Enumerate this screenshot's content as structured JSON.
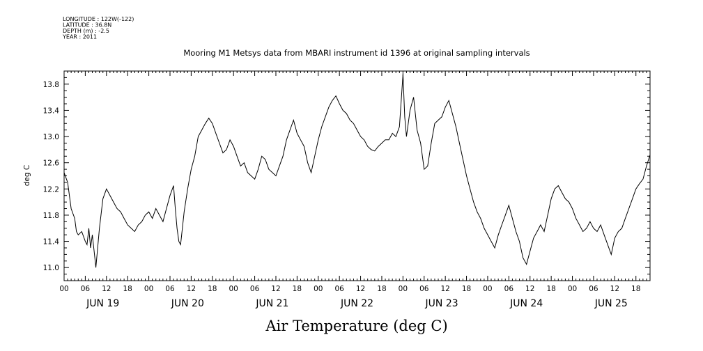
{
  "metadata": [
    "LONGITUDE : 122W(-122)",
    "LATITUDE : 36.8N",
    "DEPTH (m) : -2.5",
    "YEAR : 2011"
  ],
  "chart_data": {
    "type": "line",
    "title": "Mooring M1 Metsys data from MBARI instrument id 1396 at original sampling intervals",
    "xlabel": "Air Temperature (deg C)",
    "ylabel": "deg C",
    "x_unit": "hours since JUN 19 00:00 (2011)",
    "xlim": [
      0,
      166
    ],
    "ylim": [
      10.8,
      14.0
    ],
    "y_ticks": [
      "11.0",
      "11.4",
      "11.8",
      "12.2",
      "12.6",
      "13.0",
      "13.4",
      "13.8"
    ],
    "x_hour_labels": [
      "00",
      "06",
      "12",
      "18"
    ],
    "day_labels": [
      "JUN 19",
      "JUN 20",
      "JUN 21",
      "JUN 22",
      "JUN 23",
      "JUN 24",
      "JUN 25"
    ],
    "grid": false,
    "series": [
      {
        "name": "",
        "color": "#000000",
        "points": [
          [
            0,
            12.45
          ],
          [
            1,
            12.3
          ],
          [
            2,
            11.9
          ],
          [
            3,
            11.75
          ],
          [
            3.5,
            11.55
          ],
          [
            4,
            11.5
          ],
          [
            5,
            11.55
          ],
          [
            6,
            11.4
          ],
          [
            6.5,
            11.35
          ],
          [
            7,
            11.6
          ],
          [
            7.5,
            11.3
          ],
          [
            8,
            11.5
          ],
          [
            8.5,
            11.25
          ],
          [
            9,
            11.0
          ],
          [
            10,
            11.6
          ],
          [
            11,
            12.05
          ],
          [
            12,
            12.2
          ],
          [
            13,
            12.1
          ],
          [
            14,
            12.0
          ],
          [
            15,
            11.9
          ],
          [
            16,
            11.85
          ],
          [
            17,
            11.75
          ],
          [
            18,
            11.65
          ],
          [
            19,
            11.6
          ],
          [
            20,
            11.55
          ],
          [
            21,
            11.65
          ],
          [
            22,
            11.7
          ],
          [
            23,
            11.8
          ],
          [
            24,
            11.85
          ],
          [
            25,
            11.75
          ],
          [
            26,
            11.9
          ],
          [
            27,
            11.8
          ],
          [
            28,
            11.7
          ],
          [
            29,
            11.9
          ],
          [
            30,
            12.1
          ],
          [
            31,
            12.25
          ],
          [
            31.5,
            11.9
          ],
          [
            32,
            11.6
          ],
          [
            32.5,
            11.4
          ],
          [
            33,
            11.35
          ],
          [
            34,
            11.85
          ],
          [
            35,
            12.2
          ],
          [
            36,
            12.5
          ],
          [
            37,
            12.7
          ],
          [
            38,
            13.0
          ],
          [
            39,
            13.1
          ],
          [
            40,
            13.2
          ],
          [
            41,
            13.28
          ],
          [
            42,
            13.2
          ],
          [
            43,
            13.05
          ],
          [
            44,
            12.9
          ],
          [
            45,
            12.75
          ],
          [
            46,
            12.8
          ],
          [
            47,
            12.95
          ],
          [
            48,
            12.85
          ],
          [
            49,
            12.7
          ],
          [
            50,
            12.55
          ],
          [
            51,
            12.6
          ],
          [
            52,
            12.45
          ],
          [
            53,
            12.4
          ],
          [
            54,
            12.35
          ],
          [
            55,
            12.5
          ],
          [
            56,
            12.7
          ],
          [
            57,
            12.65
          ],
          [
            58,
            12.5
          ],
          [
            59,
            12.45
          ],
          [
            60,
            12.4
          ],
          [
            61,
            12.55
          ],
          [
            62,
            12.7
          ],
          [
            63,
            12.95
          ],
          [
            64,
            13.1
          ],
          [
            65,
            13.25
          ],
          [
            66,
            13.05
          ],
          [
            67,
            12.95
          ],
          [
            68,
            12.85
          ],
          [
            69,
            12.6
          ],
          [
            70,
            12.45
          ],
          [
            71,
            12.7
          ],
          [
            72,
            12.95
          ],
          [
            73,
            13.15
          ],
          [
            74,
            13.3
          ],
          [
            75,
            13.45
          ],
          [
            76,
            13.55
          ],
          [
            77,
            13.62
          ],
          [
            78,
            13.5
          ],
          [
            79,
            13.4
          ],
          [
            80,
            13.35
          ],
          [
            81,
            13.25
          ],
          [
            82,
            13.2
          ],
          [
            83,
            13.1
          ],
          [
            84,
            13.0
          ],
          [
            85,
            12.95
          ],
          [
            86,
            12.85
          ],
          [
            87,
            12.8
          ],
          [
            88,
            12.78
          ],
          [
            89,
            12.85
          ],
          [
            90,
            12.9
          ],
          [
            91,
            12.95
          ],
          [
            92,
            12.95
          ],
          [
            93,
            13.05
          ],
          [
            94,
            13.0
          ],
          [
            95,
            13.15
          ],
          [
            96,
            13.95
          ],
          [
            96.5,
            13.3
          ],
          [
            97,
            13.0
          ],
          [
            98,
            13.4
          ],
          [
            99,
            13.6
          ],
          [
            100,
            13.1
          ],
          [
            101,
            12.9
          ],
          [
            102,
            12.5
          ],
          [
            103,
            12.55
          ],
          [
            104,
            12.9
          ],
          [
            105,
            13.2
          ],
          [
            106,
            13.25
          ],
          [
            107,
            13.3
          ],
          [
            108,
            13.45
          ],
          [
            109,
            13.55
          ],
          [
            110,
            13.35
          ],
          [
            111,
            13.15
          ],
          [
            112,
            12.9
          ],
          [
            113,
            12.65
          ],
          [
            114,
            12.4
          ],
          [
            115,
            12.2
          ],
          [
            116,
            12.0
          ],
          [
            117,
            11.85
          ],
          [
            118,
            11.75
          ],
          [
            119,
            11.6
          ],
          [
            120,
            11.5
          ],
          [
            121,
            11.4
          ],
          [
            122,
            11.3
          ],
          [
            123,
            11.5
          ],
          [
            124,
            11.65
          ],
          [
            125,
            11.8
          ],
          [
            126,
            11.95
          ],
          [
            127,
            11.75
          ],
          [
            128,
            11.55
          ],
          [
            129,
            11.4
          ],
          [
            130,
            11.15
          ],
          [
            131,
            11.05
          ],
          [
            132,
            11.25
          ],
          [
            133,
            11.45
          ],
          [
            134,
            11.55
          ],
          [
            135,
            11.65
          ],
          [
            136,
            11.55
          ],
          [
            137,
            11.8
          ],
          [
            138,
            12.05
          ],
          [
            139,
            12.2
          ],
          [
            140,
            12.25
          ],
          [
            141,
            12.15
          ],
          [
            142,
            12.05
          ],
          [
            143,
            12.0
          ],
          [
            144,
            11.9
          ],
          [
            145,
            11.75
          ],
          [
            146,
            11.65
          ],
          [
            147,
            11.55
          ],
          [
            148,
            11.6
          ],
          [
            149,
            11.7
          ],
          [
            150,
            11.6
          ],
          [
            151,
            11.55
          ],
          [
            152,
            11.65
          ],
          [
            153,
            11.5
          ],
          [
            154,
            11.35
          ],
          [
            155,
            11.2
          ],
          [
            156,
            11.45
          ],
          [
            157,
            11.55
          ],
          [
            158,
            11.6
          ],
          [
            159,
            11.75
          ],
          [
            160,
            11.9
          ],
          [
            161,
            12.05
          ],
          [
            162,
            12.2
          ],
          [
            163,
            12.28
          ],
          [
            164,
            12.35
          ],
          [
            165,
            12.55
          ],
          [
            166,
            12.72
          ]
        ]
      }
    ]
  }
}
